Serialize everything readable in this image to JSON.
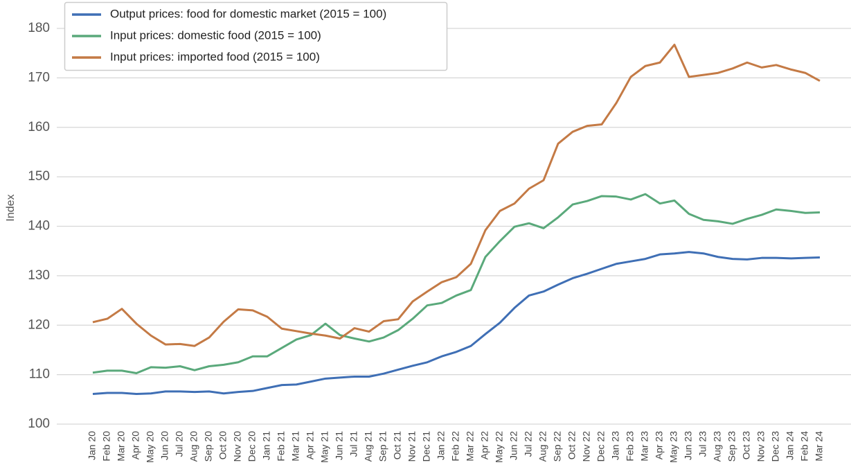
{
  "chart_data": {
    "type": "line",
    "ylabel": "Index",
    "categories": [
      "Jan 20",
      "Feb 20",
      "Mar 20",
      "Apr 20",
      "May 20",
      "Jun 20",
      "Jul 20",
      "Aug 20",
      "Sep 20",
      "Oct 20",
      "Nov 20",
      "Dec 20",
      "Jan 21",
      "Feb 21",
      "Mar 21",
      "Apr 21",
      "May 21",
      "Jun 21",
      "Jul 21",
      "Aug 21",
      "Sep 21",
      "Oct 21",
      "Nov 21",
      "Dec 21",
      "Jan 22",
      "Feb 22",
      "Mar 22",
      "Apr 22",
      "May 22",
      "Jun 22",
      "Jul 22",
      "Aug 22",
      "Sep 22",
      "Oct 22",
      "Nov 22",
      "Dec 22",
      "Jan 23",
      "Feb 23",
      "Mar 23",
      "Apr 23",
      "May 23",
      "Jun 23",
      "Jul 23",
      "Aug 23",
      "Sep 23",
      "Oct 23",
      "Nov 23",
      "Dec 23",
      "Jan 24",
      "Feb 24",
      "Mar 24"
    ],
    "series": [
      {
        "name": "Output prices: food for domestic market (2015 = 100)",
        "color": "#3f6fb5",
        "values": [
          106.1,
          106.3,
          106.3,
          106.1,
          106.2,
          106.6,
          106.6,
          106.5,
          106.6,
          106.2,
          106.5,
          106.7,
          107.3,
          107.9,
          108.0,
          108.6,
          109.2,
          109.4,
          109.6,
          109.6,
          110.2,
          111.0,
          111.8,
          112.5,
          113.7,
          114.6,
          115.8,
          118.2,
          120.5,
          123.5,
          126.0,
          126.8,
          128.2,
          129.5,
          130.4,
          131.4,
          132.4,
          132.9,
          133.4,
          134.3,
          134.5,
          134.8,
          134.5,
          133.8,
          133.4,
          133.3,
          133.6,
          133.6,
          133.5,
          133.6,
          133.7
        ]
      },
      {
        "name": "Input prices: domestic food (2015 = 100)",
        "color": "#5aa97b",
        "values": [
          110.4,
          110.8,
          110.8,
          110.3,
          111.5,
          111.4,
          111.7,
          110.9,
          111.7,
          112.0,
          112.5,
          113.7,
          113.7,
          115.4,
          117.1,
          118.0,
          120.3,
          118.0,
          117.3,
          116.7,
          117.5,
          119.0,
          121.3,
          124.0,
          124.5,
          126.0,
          127.1,
          133.8,
          137.0,
          139.9,
          140.6,
          139.6,
          141.8,
          144.4,
          145.1,
          146.1,
          146.0,
          145.4,
          146.5,
          144.6,
          145.2,
          142.5,
          141.3,
          141.0,
          140.5,
          141.5,
          142.3,
          143.4,
          143.1,
          142.7,
          142.8
        ]
      },
      {
        "name": "Input prices: imported food (2015 = 100)",
        "color": "#c47a45",
        "values": [
          120.6,
          121.3,
          123.3,
          120.3,
          117.9,
          116.1,
          116.2,
          115.8,
          117.5,
          120.7,
          123.2,
          123.0,
          121.7,
          119.3,
          118.8,
          118.3,
          117.9,
          117.3,
          119.4,
          118.7,
          120.8,
          121.2,
          124.8,
          126.8,
          128.7,
          129.7,
          132.4,
          139.2,
          143.1,
          144.6,
          147.6,
          149.3,
          156.7,
          159.1,
          160.3,
          160.6,
          164.9,
          170.2,
          172.4,
          173.1,
          176.7,
          170.2,
          170.6,
          171.0,
          171.9,
          173.1,
          172.1,
          172.6,
          171.7,
          171.0,
          169.4
        ]
      }
    ],
    "ylim": [
      100,
      180
    ],
    "yticks": [
      100,
      110,
      120,
      130,
      140,
      150,
      160,
      170,
      180
    ],
    "grid": true,
    "legend": "upper left"
  }
}
